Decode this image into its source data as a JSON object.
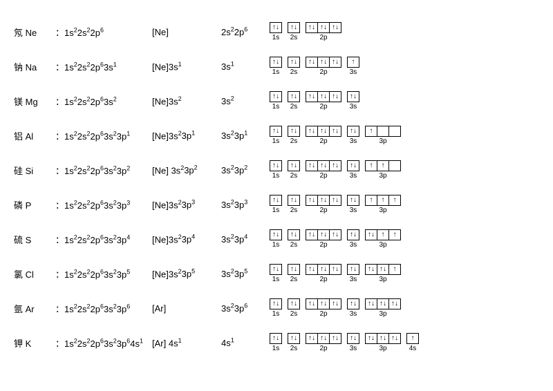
{
  "arrows": {
    "updown": "↑↓",
    "up": "↑",
    "empty": ""
  },
  "orbital_labels": {
    "1s": "1s",
    "2s": "2s",
    "2p": "2p",
    "3s": "3s",
    "3p": "3p",
    "4s": "4s"
  },
  "elements": [
    {
      "name_cn": "氖",
      "symbol": "Ne",
      "full": [
        [
          "1s",
          "2"
        ],
        [
          "2s",
          "2"
        ],
        [
          "2p",
          "6"
        ]
      ],
      "noble": "[Ne]",
      "valence": [
        [
          "2s",
          "2"
        ],
        [
          "2p",
          "6"
        ]
      ],
      "diagram": [
        {
          "label": "1s",
          "boxes": [
            "ud"
          ]
        },
        {
          "label": "2s",
          "boxes": [
            "ud"
          ]
        },
        {
          "label": "2p",
          "boxes": [
            "ud",
            "ud",
            "ud"
          ]
        }
      ]
    },
    {
      "name_cn": "钠",
      "symbol": "Na",
      "full": [
        [
          "1s",
          "2"
        ],
        [
          "2s",
          "2"
        ],
        [
          "2p",
          "6"
        ],
        [
          "3s",
          "1"
        ]
      ],
      "noble": "[Ne]3s",
      "noble_sup": "1",
      "valence": [
        [
          "3s",
          "1"
        ]
      ],
      "diagram": [
        {
          "label": "1s",
          "boxes": [
            "ud"
          ]
        },
        {
          "label": "2s",
          "boxes": [
            "ud"
          ]
        },
        {
          "label": "2p",
          "boxes": [
            "ud",
            "ud",
            "ud"
          ]
        },
        {
          "label": "3s",
          "boxes": [
            "u"
          ]
        }
      ]
    },
    {
      "name_cn": "镁",
      "symbol": "Mg",
      "full": [
        [
          "1s",
          "2"
        ],
        [
          "2s",
          "2"
        ],
        [
          "2p",
          "6"
        ],
        [
          "3s",
          "2"
        ]
      ],
      "noble": "[Ne]3s",
      "noble_sup": "2",
      "valence": [
        [
          "3s",
          "2"
        ]
      ],
      "diagram": [
        {
          "label": "1s",
          "boxes": [
            "ud"
          ]
        },
        {
          "label": "2s",
          "boxes": [
            "ud"
          ]
        },
        {
          "label": "2p",
          "boxes": [
            "ud",
            "ud",
            "ud"
          ]
        },
        {
          "label": "3s",
          "boxes": [
            "ud"
          ]
        }
      ]
    },
    {
      "name_cn": "铝",
      "symbol": "Al",
      "full": [
        [
          "1s",
          "2"
        ],
        [
          "2s",
          "2"
        ],
        [
          "2p",
          "6"
        ],
        [
          "3s",
          "2"
        ],
        [
          "3p",
          "1"
        ]
      ],
      "noble": "[Ne]3s",
      "noble_sup": "2",
      "noble_extra": [
        [
          "3p",
          "1"
        ]
      ],
      "valence": [
        [
          "3s",
          "2"
        ],
        [
          "3p",
          "1"
        ]
      ],
      "diagram": [
        {
          "label": "1s",
          "boxes": [
            "ud"
          ]
        },
        {
          "label": "2s",
          "boxes": [
            "ud"
          ]
        },
        {
          "label": "2p",
          "boxes": [
            "ud",
            "ud",
            "ud"
          ]
        },
        {
          "label": "3s",
          "boxes": [
            "ud"
          ]
        },
        {
          "label": "3p",
          "boxes": [
            "u",
            "",
            ""
          ]
        }
      ]
    },
    {
      "name_cn": "硅",
      "symbol": "Si",
      "full": [
        [
          "1s",
          "2"
        ],
        [
          "2s",
          "2"
        ],
        [
          "2p",
          "6"
        ],
        [
          "3s",
          "2"
        ],
        [
          "3p",
          "2"
        ]
      ],
      "noble": "[Ne] 3s",
      "noble_sup": "2",
      "noble_extra": [
        [
          "3p",
          "2"
        ]
      ],
      "valence": [
        [
          "3s",
          "2"
        ],
        [
          "3p",
          "2"
        ]
      ],
      "diagram": [
        {
          "label": "1s",
          "boxes": [
            "ud"
          ]
        },
        {
          "label": "2s",
          "boxes": [
            "ud"
          ]
        },
        {
          "label": "2p",
          "boxes": [
            "ud",
            "ud",
            "ud"
          ]
        },
        {
          "label": "3s",
          "boxes": [
            "ud"
          ]
        },
        {
          "label": "3p",
          "boxes": [
            "u",
            "u",
            ""
          ]
        }
      ]
    },
    {
      "name_cn": "磷",
      "symbol": "P",
      "full": [
        [
          "1s",
          "2"
        ],
        [
          "2s",
          "2"
        ],
        [
          "2p",
          "6"
        ],
        [
          "3s",
          "2"
        ],
        [
          "3p",
          "3"
        ]
      ],
      "noble": "[Ne]3s",
      "noble_sup": "2",
      "noble_extra": [
        [
          "3p",
          "3"
        ]
      ],
      "valence": [
        [
          "3s",
          "2"
        ],
        [
          "3p",
          "3"
        ]
      ],
      "diagram": [
        {
          "label": "1s",
          "boxes": [
            "ud"
          ]
        },
        {
          "label": "2s",
          "boxes": [
            "ud"
          ]
        },
        {
          "label": "2p",
          "boxes": [
            "ud",
            "ud",
            "ud"
          ]
        },
        {
          "label": "3s",
          "boxes": [
            "ud"
          ]
        },
        {
          "label": "3p",
          "boxes": [
            "u",
            "u",
            "u"
          ]
        }
      ]
    },
    {
      "name_cn": "硫",
      "symbol": "S",
      "full": [
        [
          "1s",
          "2"
        ],
        [
          "2s",
          "2"
        ],
        [
          "2p",
          "6"
        ],
        [
          "3s",
          "2"
        ],
        [
          "3p",
          "4"
        ]
      ],
      "noble": "[Ne]3s",
      "noble_sup": "2",
      "noble_extra": [
        [
          "3p",
          "4"
        ]
      ],
      "valence": [
        [
          "3s",
          "2"
        ],
        [
          "3p",
          "4"
        ]
      ],
      "diagram": [
        {
          "label": "1s",
          "boxes": [
            "ud"
          ]
        },
        {
          "label": "2s",
          "boxes": [
            "ud"
          ]
        },
        {
          "label": "2p",
          "boxes": [
            "ud",
            "ud",
            "ud"
          ]
        },
        {
          "label": "3s",
          "boxes": [
            "ud"
          ]
        },
        {
          "label": "3p",
          "boxes": [
            "ud",
            "u",
            "u"
          ]
        }
      ]
    },
    {
      "name_cn": "氯",
      "symbol": "Cl",
      "full": [
        [
          "1s",
          "2"
        ],
        [
          "2s",
          "2"
        ],
        [
          "2p",
          "6"
        ],
        [
          "3s",
          "2"
        ],
        [
          "3p",
          "5"
        ]
      ],
      "noble": "[Ne]3s",
      "noble_sup": "2",
      "noble_extra": [
        [
          "3p",
          "5"
        ]
      ],
      "valence": [
        [
          "3s",
          "2"
        ],
        [
          "3p",
          "5"
        ]
      ],
      "diagram": [
        {
          "label": "1s",
          "boxes": [
            "ud"
          ]
        },
        {
          "label": "2s",
          "boxes": [
            "ud"
          ]
        },
        {
          "label": "2p",
          "boxes": [
            "ud",
            "ud",
            "ud"
          ]
        },
        {
          "label": "3s",
          "boxes": [
            "ud"
          ]
        },
        {
          "label": "3p",
          "boxes": [
            "ud",
            "ud",
            "u"
          ]
        }
      ]
    },
    {
      "name_cn": "氩",
      "symbol": "Ar",
      "full": [
        [
          "1s",
          "2"
        ],
        [
          "2s",
          "2"
        ],
        [
          "2p",
          "6"
        ],
        [
          "3s",
          "2"
        ],
        [
          "3p",
          "6"
        ]
      ],
      "noble": "[Ar]",
      "valence": [
        [
          "3s",
          "2"
        ],
        [
          "3p",
          "6"
        ]
      ],
      "diagram": [
        {
          "label": "1s",
          "boxes": [
            "ud"
          ]
        },
        {
          "label": "2s",
          "boxes": [
            "ud"
          ]
        },
        {
          "label": "2p",
          "boxes": [
            "ud",
            "ud",
            "ud"
          ]
        },
        {
          "label": "3s",
          "boxes": [
            "ud"
          ]
        },
        {
          "label": "3p",
          "boxes": [
            "ud",
            "ud",
            "ud"
          ]
        }
      ]
    },
    {
      "name_cn": "钾",
      "symbol": "K",
      "full": [
        [
          "1s",
          "2"
        ],
        [
          "2s",
          "2"
        ],
        [
          "2p",
          "6"
        ],
        [
          "3s",
          "2"
        ],
        [
          "3p",
          "6"
        ],
        [
          "4s",
          "1"
        ]
      ],
      "noble": "[Ar] 4s",
      "noble_sup": "1",
      "valence": [
        [
          "4s",
          "1"
        ]
      ],
      "diagram": [
        {
          "label": "1s",
          "boxes": [
            "ud"
          ]
        },
        {
          "label": "2s",
          "boxes": [
            "ud"
          ]
        },
        {
          "label": "2p",
          "boxes": [
            "ud",
            "ud",
            "ud"
          ]
        },
        {
          "label": "3s",
          "boxes": [
            "ud"
          ]
        },
        {
          "label": "3p",
          "boxes": [
            "ud",
            "ud",
            "ud"
          ]
        },
        {
          "label": "4s",
          "boxes": [
            "u"
          ]
        }
      ]
    }
  ]
}
